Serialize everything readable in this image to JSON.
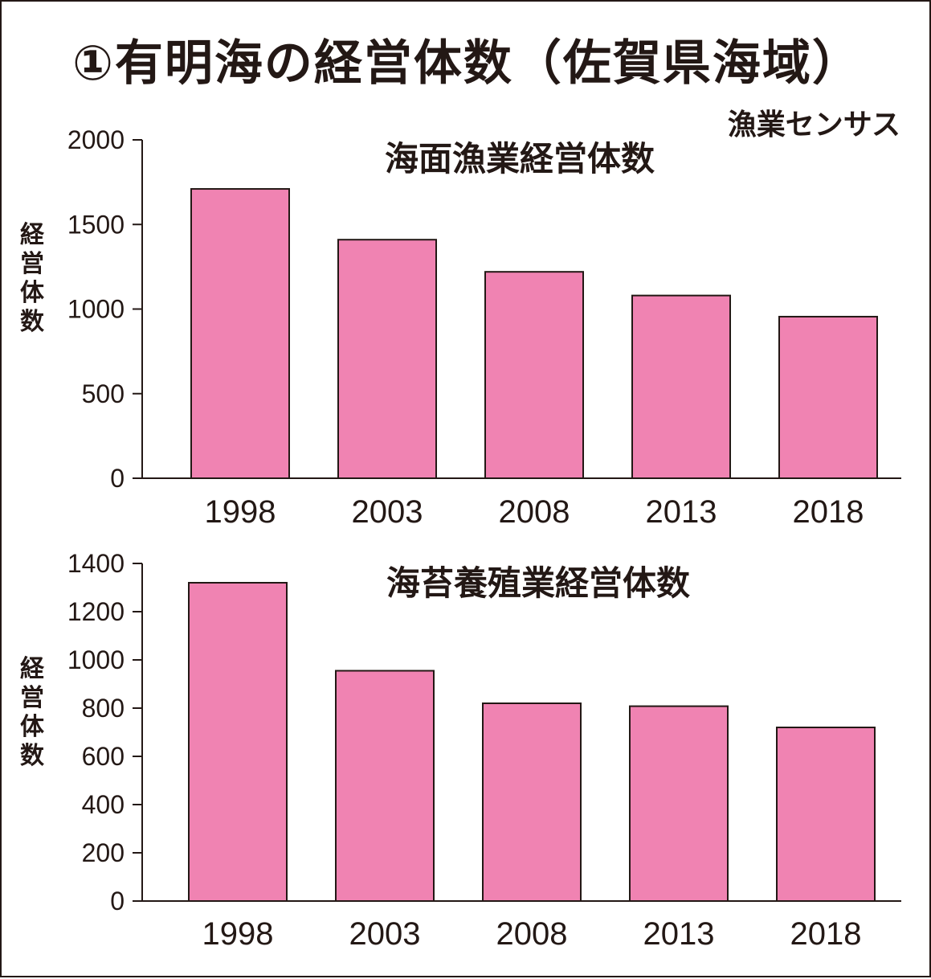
{
  "header": {
    "title": "①有明海の経営体数（佐賀県海域）",
    "source": "漁業センサス"
  },
  "colors": {
    "bar_fill": "#f083b2",
    "ink": "#231815"
  },
  "chart_data": [
    {
      "type": "bar",
      "title": "海面漁業経営体数",
      "ylabel": "経営体数",
      "categories": [
        "1998",
        "2003",
        "2008",
        "2013",
        "2018"
      ],
      "values": [
        1710,
        1410,
        1220,
        1080,
        955
      ],
      "ylim": [
        0,
        2000
      ],
      "yticks": [
        "0",
        "500",
        "1000",
        "1500",
        "2000"
      ],
      "grid": false
    },
    {
      "type": "bar",
      "title": "海苔養殖業経営体数",
      "ylabel": "経営体数",
      "categories": [
        "1998",
        "2003",
        "2008",
        "2013",
        "2018"
      ],
      "values": [
        1320,
        955,
        820,
        808,
        720
      ],
      "ylim": [
        0,
        1400
      ],
      "yticks": [
        "0",
        "200",
        "400",
        "600",
        "800",
        "1000",
        "1200",
        "1400"
      ],
      "grid": false
    }
  ]
}
